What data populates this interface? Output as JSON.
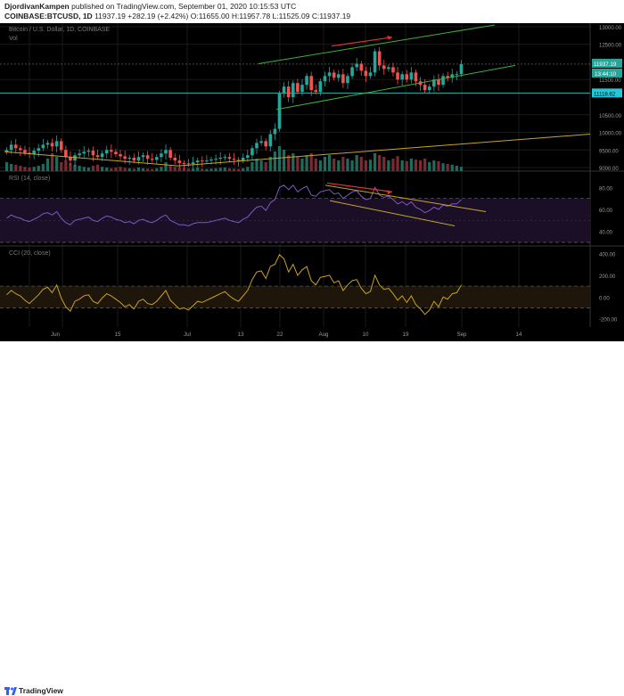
{
  "header": {
    "publisher": "DjordivanKampen",
    "published_text": "published on TradingView.com, September 01, 2020 10:15:53 UTC",
    "symbol_line": "COINBASE:BTCUSD, 1D",
    "last": "11937.19",
    "change": "+282.19 (+2.42%)",
    "ohlc": "O:11655.00 H:11957.78 L:11525.09 C:11937.19"
  },
  "footer": {
    "brand": "TradingView"
  },
  "chart_data": [
    {
      "type": "candlestick",
      "title": "Bitcoin / U.S. Dollar, 1D, COINBASE",
      "volume_label": "Vol",
      "y_ticks": [
        "13000.00",
        "12500.00",
        "11500.00",
        "10500.00",
        "10000.00",
        "9500.00",
        "9000.00"
      ],
      "y_ticks_raw": [
        13000,
        12500,
        11500,
        10500,
        10000,
        9500,
        9000
      ],
      "last_price_label": "11937.19",
      "countdown_label": "13:44:10",
      "level_label": "11118.62",
      "x_labels": [
        "Jun",
        "15",
        "Jul",
        "13",
        "22",
        "Aug",
        "10",
        "19",
        "Sep",
        "14"
      ],
      "closes": [
        9500,
        9650,
        9550,
        9500,
        9420,
        9380,
        9480,
        9550,
        9650,
        9700,
        9600,
        9750,
        9500,
        9300,
        9200,
        9350,
        9400,
        9450,
        9480,
        9350,
        9300,
        9400,
        9500,
        9450,
        9380,
        9320,
        9250,
        9280,
        9200,
        9300,
        9350,
        9250,
        9220,
        9300,
        9400,
        9500,
        9280,
        9200,
        9130,
        9120,
        9100,
        9150,
        9200,
        9180,
        9200,
        9230,
        9250,
        9280,
        9300,
        9250,
        9220,
        9200,
        9280,
        9350,
        9550,
        9700,
        9750,
        9600,
        9950,
        10100,
        11100,
        11300,
        11000,
        11400,
        11150,
        11350,
        11600,
        11200,
        11150,
        11450,
        11600,
        11700,
        11550,
        11650,
        11400,
        11600,
        11850,
        11950,
        11750,
        11600,
        11700,
        12300,
        11900,
        11800,
        11850,
        11700,
        11500,
        11650,
        11500,
        11700,
        11450,
        11350,
        11200,
        11300,
        11500,
        11350,
        11600,
        11550,
        11650,
        11655,
        11937
      ],
      "volumes": [
        0.25,
        0.2,
        0.18,
        0.15,
        0.12,
        0.1,
        0.12,
        0.15,
        0.2,
        0.35,
        0.5,
        0.4,
        0.25,
        0.3,
        0.22,
        0.18,
        0.15,
        0.12,
        0.1,
        0.15,
        0.18,
        0.12,
        0.1,
        0.08,
        0.1,
        0.12,
        0.09,
        0.08,
        0.07,
        0.1,
        0.08,
        0.07,
        0.06,
        0.08,
        0.12,
        0.25,
        0.15,
        0.12,
        0.1,
        0.08,
        0.07,
        0.08,
        0.1,
        0.07,
        0.06,
        0.07,
        0.08,
        0.09,
        0.1,
        0.08,
        0.07,
        0.06,
        0.08,
        0.12,
        0.25,
        0.35,
        0.3,
        0.25,
        0.4,
        0.55,
        0.7,
        0.6,
        0.45,
        0.5,
        0.4,
        0.35,
        0.45,
        0.5,
        0.35,
        0.3,
        0.4,
        0.45,
        0.35,
        0.3,
        0.4,
        0.35,
        0.3,
        0.45,
        0.4,
        0.3,
        0.32,
        0.5,
        0.45,
        0.4,
        0.3,
        0.35,
        0.42,
        0.3,
        0.28,
        0.35,
        0.32,
        0.3,
        0.35,
        0.25,
        0.3,
        0.28,
        0.22,
        0.2,
        0.18,
        0.15,
        0.12
      ]
    },
    {
      "type": "line",
      "title": "RSI (14, close)",
      "y_ticks": [
        "80.00",
        "60.00",
        "40.00"
      ],
      "y_ticks_raw": [
        80,
        60,
        40
      ],
      "ylim": [
        30,
        90
      ],
      "bands": [
        70,
        30
      ],
      "values": [
        52,
        55,
        53,
        52,
        50,
        49,
        51,
        53,
        56,
        57,
        55,
        58,
        52,
        48,
        46,
        50,
        51,
        52,
        53,
        50,
        49,
        52,
        54,
        53,
        51,
        50,
        48,
        49,
        47,
        50,
        51,
        49,
        48,
        50,
        53,
        55,
        50,
        48,
        46,
        46,
        45,
        47,
        48,
        48,
        48,
        49,
        50,
        51,
        52,
        50,
        49,
        48,
        51,
        53,
        58,
        62,
        63,
        59,
        66,
        69,
        80,
        82,
        78,
        82,
        76,
        79,
        81,
        73,
        72,
        76,
        77,
        78,
        74,
        75,
        70,
        73,
        76,
        77,
        72,
        69,
        70,
        80,
        73,
        71,
        72,
        69,
        65,
        67,
        64,
        67,
        62,
        60,
        57,
        59,
        62,
        60,
        64,
        63,
        65,
        65,
        69
      ]
    },
    {
      "type": "line",
      "title": "CCI (20, close)",
      "y_ticks": [
        "400.00",
        "200.00",
        "0.00",
        "-200.00"
      ],
      "y_ticks_raw": [
        400,
        200,
        0,
        -200
      ],
      "ylim": [
        -260,
        420
      ],
      "bands": [
        100,
        -100
      ],
      "values": [
        20,
        60,
        30,
        10,
        -30,
        -60,
        -20,
        20,
        70,
        90,
        40,
        110,
        -10,
        -90,
        -130,
        -40,
        -20,
        10,
        20,
        -40,
        -60,
        -10,
        30,
        10,
        -20,
        -50,
        -90,
        -70,
        -110,
        -40,
        -20,
        -60,
        -70,
        -40,
        10,
        60,
        -30,
        -70,
        -110,
        -100,
        -120,
        -80,
        -40,
        -50,
        -30,
        -10,
        10,
        30,
        50,
        10,
        -20,
        -40,
        10,
        60,
        160,
        230,
        240,
        170,
        280,
        300,
        390,
        350,
        230,
        300,
        200,
        250,
        280,
        150,
        110,
        180,
        190,
        200,
        130,
        150,
        60,
        110,
        150,
        160,
        80,
        30,
        50,
        200,
        110,
        70,
        80,
        30,
        -30,
        10,
        -50,
        10,
        -70,
        -110,
        -160,
        -120,
        -40,
        -90,
        0,
        -20,
        30,
        40,
        110
      ]
    }
  ]
}
